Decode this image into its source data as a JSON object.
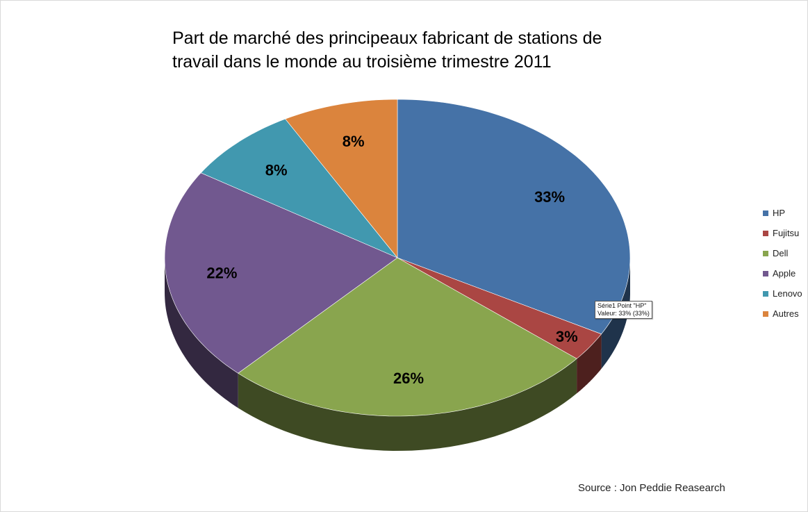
{
  "chart_data": {
    "type": "pie",
    "title": "Part de marché des principeaux fabricant de stations de travail dans le monde au troisième trimestre 2011",
    "title_lines": [
      "Part de marché des principeaux fabricant de stations de",
      "travail dans le monde au troisième trimestre 2011"
    ],
    "categories": [
      "HP",
      "Fujitsu",
      "Dell",
      "Apple",
      "Lenovo",
      "Autres"
    ],
    "values": [
      33,
      3,
      26,
      22,
      8,
      8
    ],
    "data_labels": [
      "33%",
      "3%",
      "26%",
      "22%",
      "8%",
      "8%"
    ],
    "colors": [
      "#4572a7",
      "#aa4643",
      "#89a54e",
      "#71588f",
      "#4198af",
      "#db843d"
    ],
    "legend_position": "right",
    "style": "3d-pie"
  },
  "tooltip": {
    "line1": "Série1 Point \"HP\"",
    "line2": "Valeur: 33% (33%)"
  },
  "source": "Source : Jon Peddie Reasearch"
}
